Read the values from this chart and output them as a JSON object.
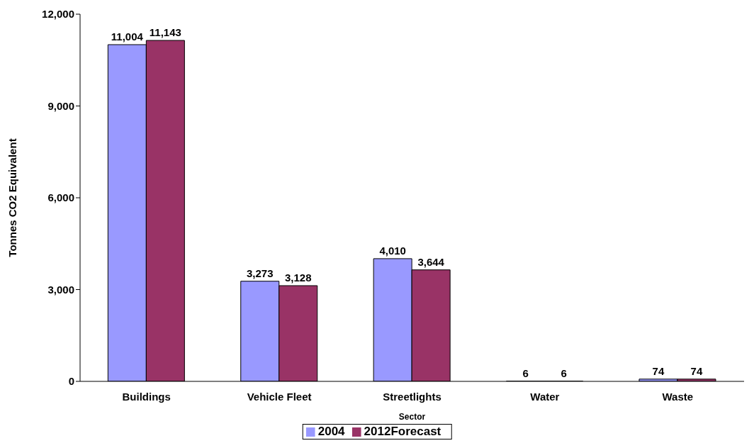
{
  "chart_data": {
    "type": "bar",
    "xlabel": "Sector",
    "ylabel": "Tonnes CO2 Equivalent",
    "categories": [
      "Buildings",
      "Vehicle Fleet",
      "Streetlights",
      "Water",
      "Waste"
    ],
    "series": [
      {
        "name": "2004",
        "color": "#9999ff",
        "values": [
          11004,
          3273,
          4010,
          6,
          74
        ],
        "value_labels": [
          "11,004",
          "3,273",
          "4,010",
          "6",
          "74"
        ]
      },
      {
        "name": "2012Forecast",
        "color": "#993366",
        "values": [
          11143,
          3128,
          3644,
          6,
          74
        ],
        "value_labels": [
          "11,143",
          "3,128",
          "3,644",
          "6",
          "74"
        ]
      }
    ],
    "ylim": [
      0,
      12000
    ],
    "yticks": [
      0,
      {
        "value": 3000,
        "label": "3,000"
      },
      {
        "value": 6000,
        "label": "6,000"
      },
      {
        "value": 9000,
        "label": "9,000"
      },
      {
        "value": 12000,
        "label": "12,000"
      }
    ],
    "grid": false,
    "legend": "bottom"
  }
}
